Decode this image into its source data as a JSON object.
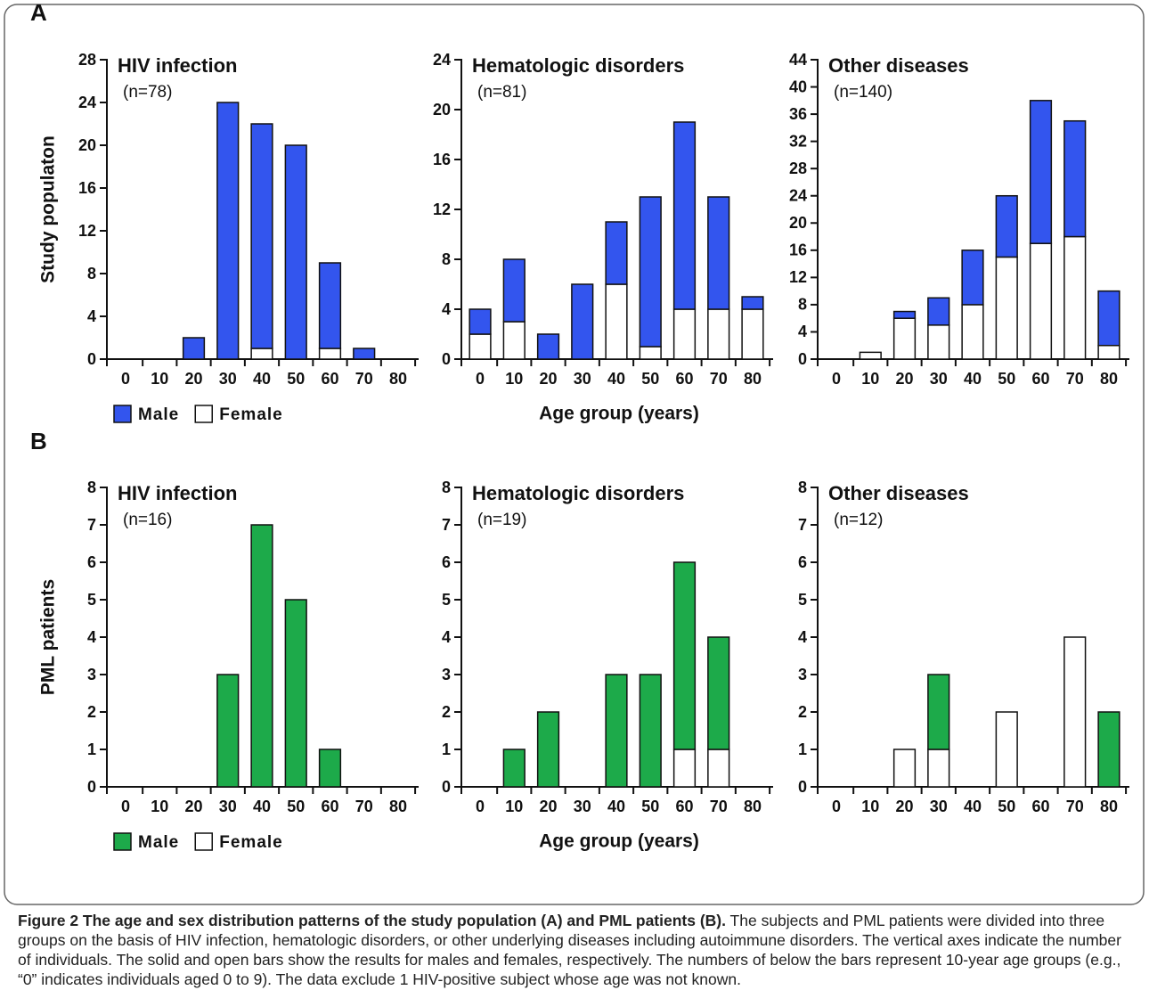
{
  "panel_labels": [
    "A",
    "B"
  ],
  "chart_data": [
    {
      "type": "bar",
      "stacked": true,
      "title": "HIV infection",
      "subtitle": "(n=78)",
      "y_label": "Study populaton",
      "legend": "bottom",
      "categories": [
        "0",
        "10",
        "20",
        "30",
        "40",
        "50",
        "60",
        "70",
        "80"
      ],
      "series": [
        {
          "name": "Male",
          "color": "#3355ee",
          "values": [
            0,
            0,
            2,
            24,
            21,
            20,
            8,
            1,
            0
          ]
        },
        {
          "name": "Female",
          "color": "#ffffff",
          "values": [
            0,
            0,
            0,
            0,
            1,
            0,
            1,
            0,
            0
          ]
        }
      ],
      "ylim": [
        0,
        28
      ],
      "yticks": [
        0,
        4,
        8,
        12,
        16,
        20,
        24,
        28
      ]
    },
    {
      "type": "bar",
      "stacked": true,
      "title": "Hematologic disorders",
      "subtitle": "(n=81)",
      "x_label": "Age group (years)",
      "categories": [
        "0",
        "10",
        "20",
        "30",
        "40",
        "50",
        "60",
        "70",
        "80"
      ],
      "series": [
        {
          "color": "#3355ee",
          "values": [
            2,
            5,
            2,
            6,
            5,
            12,
            15,
            9,
            1
          ]
        },
        {
          "color": "#ffffff",
          "values": [
            2,
            3,
            0,
            0,
            6,
            1,
            4,
            4,
            4
          ]
        }
      ],
      "ylim": [
        0,
        24
      ],
      "yticks": [
        0,
        4,
        8,
        12,
        16,
        20,
        24
      ]
    },
    {
      "type": "bar",
      "stacked": true,
      "title": "Other diseases",
      "subtitle": "(n=140)",
      "categories": [
        "0",
        "10",
        "20",
        "30",
        "40",
        "50",
        "60",
        "70",
        "80"
      ],
      "series": [
        {
          "color": "#3355ee",
          "values": [
            0,
            0,
            1,
            4,
            8,
            9,
            21,
            17,
            8
          ]
        },
        {
          "color": "#ffffff",
          "values": [
            0,
            1,
            6,
            5,
            8,
            15,
            17,
            18,
            2
          ]
        }
      ],
      "ylim": [
        0,
        44
      ],
      "yticks": [
        0,
        4,
        8,
        12,
        16,
        20,
        24,
        28,
        32,
        36,
        40,
        44
      ]
    },
    {
      "type": "bar",
      "stacked": true,
      "title": "HIV infection",
      "subtitle": "(n=16)",
      "y_label": "PML patients",
      "legend": "bottom",
      "categories": [
        "0",
        "10",
        "20",
        "30",
        "40",
        "50",
        "60",
        "70",
        "80"
      ],
      "series": [
        {
          "name": "Male",
          "color": "#1daa4a",
          "values": [
            0,
            0,
            0,
            3,
            7,
            5,
            1,
            0,
            0
          ]
        },
        {
          "name": "Female",
          "color": "#ffffff",
          "values": [
            0,
            0,
            0,
            0,
            0,
            0,
            0,
            0,
            0
          ]
        }
      ],
      "ylim": [
        0,
        8
      ],
      "yticks": [
        0,
        1,
        2,
        3,
        4,
        5,
        6,
        7,
        8
      ]
    },
    {
      "type": "bar",
      "stacked": true,
      "title": "Hematologic disorders",
      "subtitle": "(n=19)",
      "x_label": "Age group (years)",
      "categories": [
        "0",
        "10",
        "20",
        "30",
        "40",
        "50",
        "60",
        "70",
        "80"
      ],
      "series": [
        {
          "color": "#1daa4a",
          "values": [
            0,
            1,
            2,
            0,
            3,
            3,
            5,
            3,
            0
          ]
        },
        {
          "color": "#ffffff",
          "values": [
            0,
            0,
            0,
            0,
            0,
            0,
            1,
            1,
            0
          ]
        }
      ],
      "ylim": [
        0,
        8
      ],
      "yticks": [
        0,
        1,
        2,
        3,
        4,
        5,
        6,
        7,
        8
      ]
    },
    {
      "type": "bar",
      "stacked": true,
      "title": "Other diseases",
      "subtitle": "(n=12)",
      "categories": [
        "0",
        "10",
        "20",
        "30",
        "40",
        "50",
        "60",
        "70",
        "80"
      ],
      "series": [
        {
          "color": "#1daa4a",
          "values": [
            0,
            0,
            0,
            2,
            0,
            0,
            0,
            0,
            2
          ]
        },
        {
          "color": "#ffffff",
          "values": [
            0,
            0,
            1,
            1,
            0,
            2,
            0,
            4,
            0
          ]
        }
      ],
      "ylim": [
        0,
        8
      ],
      "yticks": [
        0,
        1,
        2,
        3,
        4,
        5,
        6,
        7,
        8
      ]
    }
  ],
  "caption": {
    "title": "Figure 2 The age and sex distribution patterns of the study population (A) and PML patients (B).",
    "text": "The subjects and PML patients were divided into three groups on the basis of HIV infection, hematologic disorders, or other underlying diseases including autoimmune disorders. The vertical axes indicate the number of individuals. The solid and open bars show the results for males and females, respectively. The numbers of below the bars represent 10-year age groups (e.g., “0” indicates individuals aged 0 to 9). The data exclude 1 HIV-positive subject whose age was not known."
  }
}
